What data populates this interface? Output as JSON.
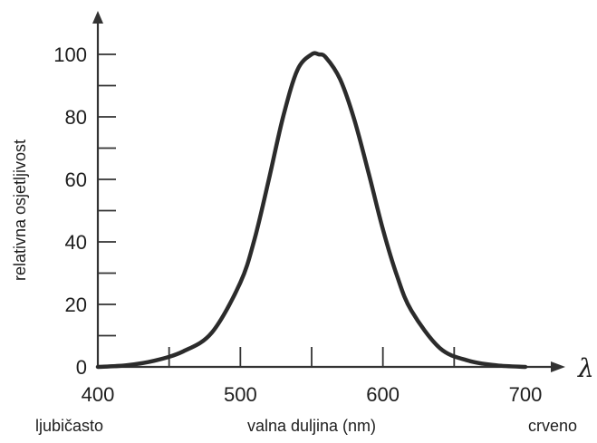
{
  "chart_data": {
    "type": "line",
    "title": "",
    "xlabel": "valna duljina (nm)",
    "ylabel": "relativna osjetljivost",
    "x_axis_symbol": "λ",
    "x_end_labels": {
      "left": "ljubičasto",
      "right": "crveno"
    },
    "xlim": [
      400,
      700
    ],
    "ylim": [
      0,
      100
    ],
    "xticks_labeled": [
      "400",
      "500",
      "600",
      "700"
    ],
    "yticks_labeled": [
      "0",
      "20",
      "40",
      "60",
      "80",
      "100"
    ],
    "grid": false,
    "series": [
      {
        "x": [
          400,
          420,
          440,
          460,
          480,
          500,
          510,
          520,
          530,
          540,
          550,
          555,
          560,
          570,
          580,
          590,
          600,
          610,
          620,
          640,
          660,
          680,
          700
        ],
        "values": [
          0,
          0.5,
          2,
          5,
          11,
          27,
          41,
          60,
          80,
          95,
          100,
          100,
          99,
          92,
          79,
          62,
          44,
          29,
          18,
          6,
          2,
          0.5,
          0
        ]
      }
    ],
    "colors": {
      "curve": "#2b2b2b",
      "axis": "#333333"
    }
  }
}
